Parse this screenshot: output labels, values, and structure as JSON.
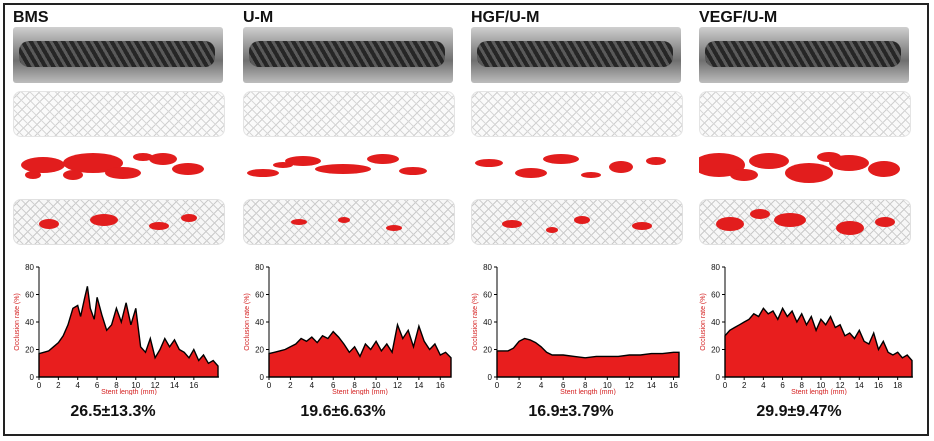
{
  "panels": [
    {
      "title": "BMS",
      "stat": "26.5±13.3%"
    },
    {
      "title": "U-M",
      "stat": "19.6±6.63%"
    },
    {
      "title": "HGF/U-M",
      "stat": "16.9±3.79%"
    },
    {
      "title": "VEGF/U-M",
      "stat": "29.9±9.47%"
    }
  ],
  "colors": {
    "occlusion": "#e81e1e",
    "axis_label": "#d42020"
  },
  "chart_data": [
    {
      "type": "area",
      "xlabel": "Stent length (mm)",
      "ylabel": "Occlusion rate (%)",
      "xlim": [
        0,
        18.6
      ],
      "ylim": [
        0,
        80
      ],
      "xticks": [
        0,
        2,
        4,
        6,
        8,
        10,
        12,
        14,
        16
      ],
      "yticks": [
        0,
        20,
        40,
        60,
        80
      ],
      "x": [
        0,
        0.5,
        1,
        1.5,
        2,
        2.5,
        3,
        3.5,
        4,
        4.3,
        4.7,
        5,
        5.3,
        5.7,
        6,
        6.5,
        7,
        7.5,
        8,
        8.5,
        9,
        9.5,
        10,
        10.5,
        11,
        11.5,
        12,
        12.5,
        13,
        13.5,
        14,
        14.5,
        15,
        15.5,
        16,
        16.5,
        17,
        17.5,
        18,
        18.5
      ],
      "y": [
        17,
        18,
        19,
        22,
        25,
        30,
        38,
        50,
        52,
        44,
        57,
        66,
        50,
        42,
        58,
        45,
        34,
        38,
        50,
        40,
        54,
        38,
        50,
        22,
        18,
        28,
        14,
        20,
        28,
        22,
        27,
        20,
        18,
        14,
        20,
        12,
        16,
        10,
        12,
        8
      ]
    },
    {
      "type": "area",
      "xlabel": "Stent length (mm)",
      "ylabel": "Occlusion rate (%)",
      "xlim": [
        0,
        17
      ],
      "ylim": [
        0,
        80
      ],
      "xticks": [
        0,
        2,
        4,
        6,
        8,
        10,
        12,
        14,
        16
      ],
      "yticks": [
        0,
        20,
        40,
        60,
        80
      ],
      "x": [
        0,
        0.5,
        1,
        1.5,
        2,
        2.5,
        3,
        3.5,
        4,
        4.5,
        5,
        5.5,
        6,
        6.5,
        7,
        7.5,
        8,
        8.5,
        9,
        9.5,
        10,
        10.5,
        11,
        11.5,
        12,
        12.5,
        13,
        13.5,
        14,
        14.5,
        15,
        15.5,
        16,
        16.5,
        17
      ],
      "y": [
        17,
        18,
        19,
        20,
        22,
        24,
        28,
        26,
        29,
        25,
        30,
        28,
        33,
        29,
        24,
        18,
        22,
        15,
        24,
        20,
        26,
        19,
        24,
        18,
        38,
        28,
        34,
        22,
        37,
        26,
        20,
        24,
        16,
        18,
        14
      ]
    },
    {
      "type": "area",
      "xlabel": "Stent length (mm)",
      "ylabel": "Occlusion rate (%)",
      "xlim": [
        0,
        16.5
      ],
      "ylim": [
        0,
        80
      ],
      "xticks": [
        0,
        2,
        4,
        6,
        8,
        10,
        12,
        14,
        16
      ],
      "yticks": [
        0,
        20,
        40,
        60,
        80
      ],
      "x": [
        0,
        1,
        1.5,
        2,
        2.5,
        3,
        3.5,
        4,
        4.5,
        5,
        6,
        7,
        8,
        9,
        10,
        11,
        12,
        13,
        14,
        15,
        16,
        16.5
      ],
      "y": [
        19,
        19,
        21,
        26,
        28,
        27,
        25,
        22,
        18,
        16,
        16,
        15,
        14,
        15,
        15,
        15,
        16,
        16,
        17,
        17,
        18,
        18
      ]
    },
    {
      "type": "area",
      "xlabel": "Stent length (mm)",
      "ylabel": "Occlusion rate (%)",
      "xlim": [
        0,
        19.6
      ],
      "ylim": [
        0,
        80
      ],
      "xticks": [
        0,
        2,
        4,
        6,
        8,
        10,
        12,
        14,
        16,
        18
      ],
      "yticks": [
        0,
        20,
        40,
        60,
        80
      ],
      "x": [
        0,
        0.5,
        1,
        1.5,
        2,
        2.5,
        3,
        3.5,
        4,
        4.5,
        5,
        5.5,
        6,
        6.5,
        7,
        7.5,
        8,
        8.5,
        9,
        9.5,
        10,
        10.5,
        11,
        11.5,
        12,
        12.5,
        13,
        13.5,
        14,
        14.5,
        15,
        15.5,
        16,
        16.5,
        17,
        17.5,
        18,
        18.5,
        19,
        19.5
      ],
      "y": [
        30,
        34,
        36,
        38,
        40,
        42,
        46,
        44,
        50,
        46,
        48,
        42,
        50,
        44,
        48,
        40,
        46,
        38,
        44,
        34,
        42,
        38,
        44,
        36,
        38,
        30,
        32,
        28,
        34,
        26,
        24,
        32,
        20,
        26,
        18,
        16,
        18,
        14,
        16,
        12
      ]
    }
  ]
}
